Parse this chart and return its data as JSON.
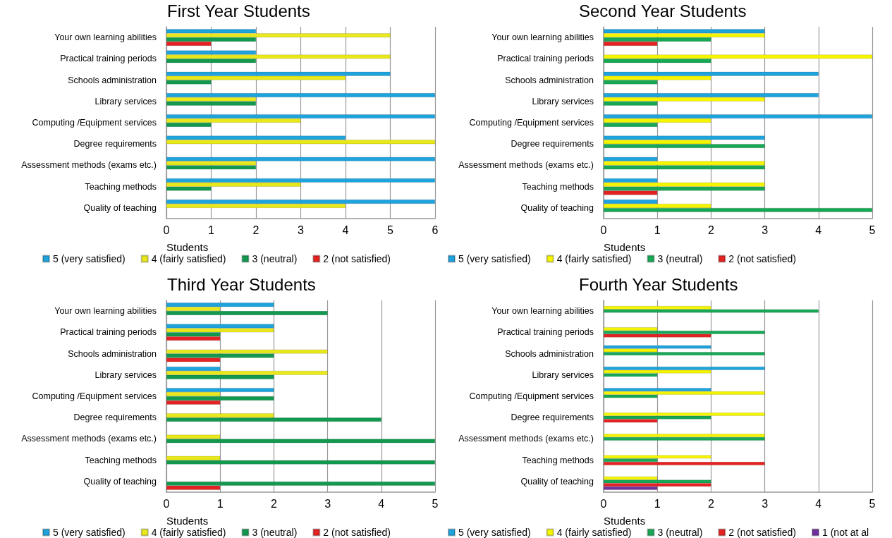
{
  "chart_data": [
    {
      "type": "bar",
      "orientation": "horizontal",
      "title": "First Year Students",
      "xlabel": "Students",
      "categories": [
        "Your own learning abilities",
        "Practical training periods",
        "Schools administration",
        "Library services",
        "Computing /Equipment services",
        "Degree requirements",
        "Assessment methods (exams etc.)",
        "Teaching methods",
        "Quality of teaching"
      ],
      "xlim": [
        0,
        6
      ],
      "xticks": [
        0,
        1,
        2,
        3,
        4,
        5,
        6
      ],
      "grid": "x",
      "legend": "bottom",
      "series": [
        {
          "name": "5 (very satisfied)",
          "color": "#1fa3dc",
          "values": [
            2,
            2,
            5,
            6,
            6,
            4,
            6,
            6,
            6
          ]
        },
        {
          "name": "4 (fairly satisfied)",
          "color": "#e8e81a",
          "values": [
            5,
            5,
            4,
            2,
            3,
            6,
            2,
            3,
            4
          ]
        },
        {
          "name": "3 (neutral)",
          "color": "#12994f",
          "values": [
            2,
            2,
            1,
            2,
            1,
            null,
            2,
            1,
            null
          ]
        },
        {
          "name": "2 (not satisfied)",
          "color": "#e52222",
          "values": [
            1,
            null,
            null,
            null,
            null,
            null,
            null,
            null,
            null
          ]
        }
      ]
    },
    {
      "type": "bar",
      "orientation": "horizontal",
      "title": "Second Year Students",
      "xlabel": "Students",
      "categories": [
        "Your own learning abilities",
        "Practical training periods",
        "Schools administration",
        "Library services",
        "Computing /Equipment services",
        "Degree requirements",
        "Assessment methods (exams etc.)",
        "Teaching methods",
        "Quality of teaching"
      ],
      "xlim": [
        0,
        5
      ],
      "xticks": [
        0,
        1,
        2,
        3,
        4,
        5
      ],
      "grid": "x",
      "legend": "bottom",
      "series": [
        {
          "name": "5 (very satisfied)",
          "color": "#1fa3dc",
          "values": [
            3,
            null,
            4,
            4,
            5,
            3,
            1,
            1,
            1
          ]
        },
        {
          "name": "4 (fairly satisfied)",
          "color": "#f5f500",
          "values": [
            3,
            5,
            2,
            3,
            2,
            2,
            3,
            3,
            2
          ]
        },
        {
          "name": "3 (neutral)",
          "color": "#17a855",
          "values": [
            2,
            2,
            1,
            1,
            1,
            3,
            3,
            3,
            5
          ]
        },
        {
          "name": "2 (not satisfied)",
          "color": "#e52222",
          "values": [
            1,
            null,
            null,
            null,
            null,
            null,
            null,
            1,
            null
          ]
        }
      ]
    },
    {
      "type": "bar",
      "orientation": "horizontal",
      "title": "Third Year Students",
      "xlabel": "Students",
      "categories": [
        "Your own learning abilities",
        "Practical training periods",
        "Schools administration",
        "Library services",
        "Computing /Equipment services",
        "Degree requirements",
        "Assessment methods (exams etc.)",
        "Teaching methods",
        "Quality of teaching"
      ],
      "xlim": [
        0,
        5
      ],
      "xticks": [
        0,
        1,
        2,
        3,
        4,
        5
      ],
      "grid": "x",
      "legend": "bottom",
      "series": [
        {
          "name": "5 (very satisfied)",
          "color": "#1fa3dc",
          "values": [
            2,
            2,
            null,
            1,
            2,
            null,
            null,
            null,
            null
          ]
        },
        {
          "name": "4 (fairly satisfied)",
          "color": "#e8e81a",
          "values": [
            1,
            2,
            3,
            3,
            1,
            2,
            1,
            1,
            null
          ]
        },
        {
          "name": "3 (neutral)",
          "color": "#12994f",
          "values": [
            3,
            1,
            2,
            2,
            2,
            4,
            5,
            5,
            5
          ]
        },
        {
          "name": "2 (not satisfied)",
          "color": "#e52222",
          "values": [
            null,
            1,
            1,
            null,
            1,
            null,
            null,
            null,
            1
          ]
        }
      ]
    },
    {
      "type": "bar",
      "orientation": "horizontal",
      "title": "Fourth Year Students",
      "xlabel": "Students",
      "categories": [
        "Your own learning abilities",
        "Practical training periods",
        "Schools administration",
        "Library services",
        "Computing /Equipment services",
        "Degree requirements",
        "Assessment methods (exams etc.)",
        "Teaching methods",
        "Quality of teaching"
      ],
      "xlim": [
        0,
        5
      ],
      "xticks": [
        0,
        1,
        2,
        3,
        4,
        5
      ],
      "grid": "x",
      "legend": "bottom",
      "series": [
        {
          "name": "5 (very satisfied)",
          "color": "#1fa3dc",
          "values": [
            null,
            null,
            2,
            3,
            2,
            null,
            null,
            null,
            null
          ]
        },
        {
          "name": "4 (fairly satisfied)",
          "color": "#f5f500",
          "values": [
            2,
            1,
            1,
            2,
            3,
            3,
            3,
            2,
            1
          ]
        },
        {
          "name": "3 (neutral)",
          "color": "#17a855",
          "values": [
            4,
            3,
            3,
            1,
            1,
            2,
            3,
            1,
            2
          ]
        },
        {
          "name": "2 (not satisfied)",
          "color": "#e52222",
          "values": [
            null,
            2,
            null,
            null,
            null,
            1,
            null,
            3,
            2
          ]
        },
        {
          "name": "1 (not at al",
          "color": "#7030a0",
          "values": [
            null,
            null,
            null,
            null,
            null,
            null,
            null,
            null,
            1
          ]
        }
      ]
    }
  ]
}
